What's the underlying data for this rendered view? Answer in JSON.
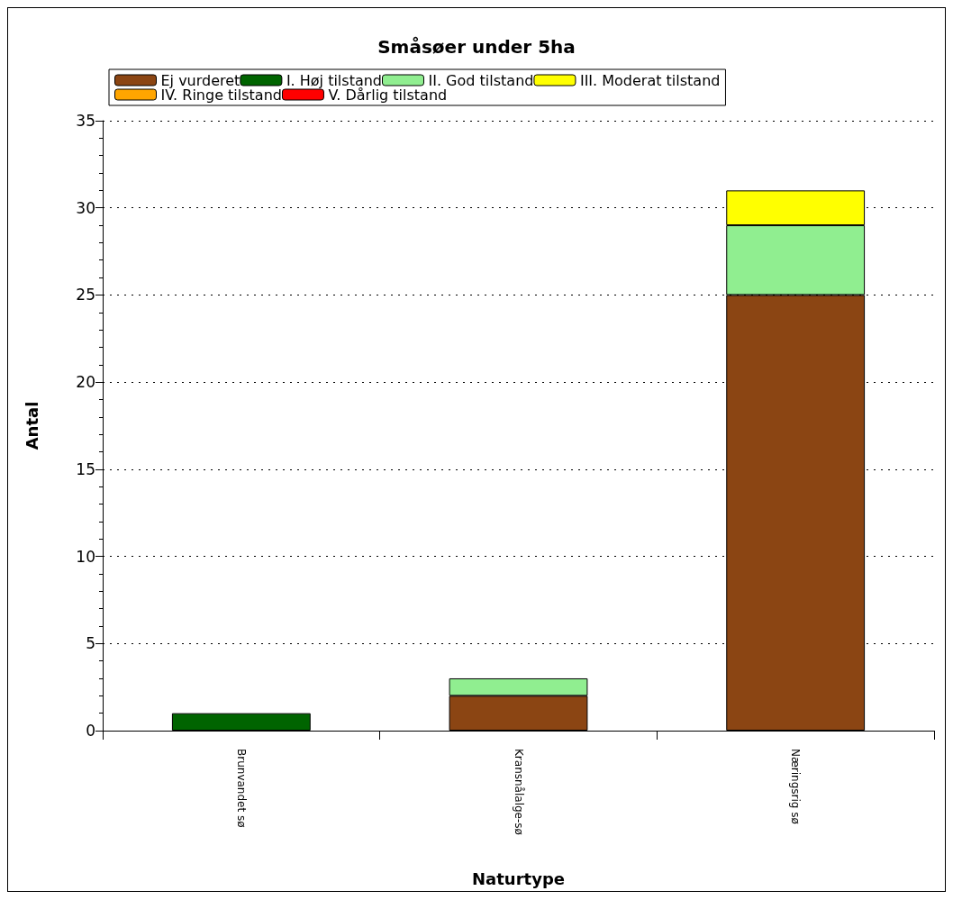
{
  "chart_data": {
    "type": "bar",
    "title": "Småsøer under 5ha",
    "xlabel": "Naturtype",
    "ylabel": "Antal",
    "categories": [
      "Brunvandet sø",
      "Kransnålalge-sø",
      "Næringsrig sø"
    ],
    "series": [
      {
        "name": "Ej vurderet",
        "color": "#8b4513",
        "values": [
          0,
          2,
          25
        ]
      },
      {
        "name": "I. Høj tilstand",
        "color": "#006400",
        "values": [
          1,
          0,
          0
        ]
      },
      {
        "name": "II. God tilstand",
        "color": "#90ee90",
        "values": [
          0,
          1,
          4
        ]
      },
      {
        "name": "III. Moderat tilstand",
        "color": "#ffff00",
        "values": [
          0,
          0,
          2
        ]
      },
      {
        "name": "IV. Ringe tilstand",
        "color": "#ffa500",
        "values": [
          0,
          0,
          0
        ]
      },
      {
        "name": "V. Dårlig tilstand",
        "color": "#ff0000",
        "values": [
          0,
          0,
          0
        ]
      }
    ],
    "stacked": true,
    "ylim": [
      0,
      35
    ],
    "yticks": [
      0,
      5,
      10,
      15,
      20,
      25,
      30,
      35
    ],
    "grid": "y",
    "legend": "top"
  }
}
